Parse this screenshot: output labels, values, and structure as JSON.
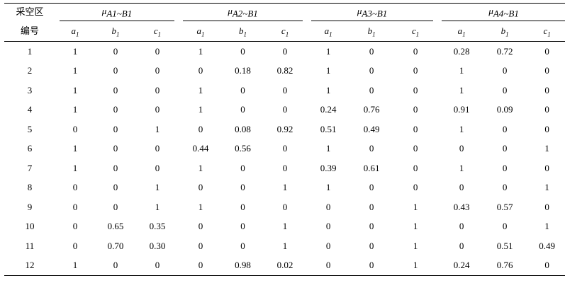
{
  "header": {
    "first_col_line1": "采空区",
    "first_col_line2": "编号",
    "groups": [
      {
        "mu": "μ",
        "sub": "A1~B1"
      },
      {
        "mu": "μ",
        "sub": "A2~B1"
      },
      {
        "mu": "μ",
        "sub": "A3~B1"
      },
      {
        "mu": "μ",
        "sub": "A4~B1"
      }
    ],
    "subcols": [
      {
        "base": "a",
        "sub": "1"
      },
      {
        "base": "b",
        "sub": "1"
      },
      {
        "base": "c",
        "sub": "1"
      }
    ]
  },
  "rows": [
    {
      "id": "1",
      "vals": [
        "1",
        "0",
        "0",
        "1",
        "0",
        "0",
        "1",
        "0",
        "0",
        "0.28",
        "0.72",
        "0"
      ]
    },
    {
      "id": "2",
      "vals": [
        "1",
        "0",
        "0",
        "0",
        "0.18",
        "0.82",
        "1",
        "0",
        "0",
        "1",
        "0",
        "0"
      ]
    },
    {
      "id": "3",
      "vals": [
        "1",
        "0",
        "0",
        "1",
        "0",
        "0",
        "1",
        "0",
        "0",
        "1",
        "0",
        "0"
      ]
    },
    {
      "id": "4",
      "vals": [
        "1",
        "0",
        "0",
        "1",
        "0",
        "0",
        "0.24",
        "0.76",
        "0",
        "0.91",
        "0.09",
        "0"
      ]
    },
    {
      "id": "5",
      "vals": [
        "0",
        "0",
        "1",
        "0",
        "0.08",
        "0.92",
        "0.51",
        "0.49",
        "0",
        "1",
        "0",
        "0"
      ]
    },
    {
      "id": "6",
      "vals": [
        "1",
        "0",
        "0",
        "0.44",
        "0.56",
        "0",
        "1",
        "0",
        "0",
        "0",
        "0",
        "1"
      ]
    },
    {
      "id": "7",
      "vals": [
        "1",
        "0",
        "0",
        "1",
        "0",
        "0",
        "0.39",
        "0.61",
        "0",
        "1",
        "0",
        "0"
      ]
    },
    {
      "id": "8",
      "vals": [
        "0",
        "0",
        "1",
        "0",
        "0",
        "1",
        "1",
        "0",
        "0",
        "0",
        "0",
        "1"
      ]
    },
    {
      "id": "9",
      "vals": [
        "0",
        "0",
        "1",
        "1",
        "0",
        "0",
        "0",
        "0",
        "1",
        "0.43",
        "0.57",
        "0"
      ]
    },
    {
      "id": "10",
      "vals": [
        "0",
        "0.65",
        "0.35",
        "0",
        "0",
        "1",
        "0",
        "0",
        "1",
        "0",
        "0",
        "1"
      ]
    },
    {
      "id": "11",
      "vals": [
        "0",
        "0.70",
        "0.30",
        "0",
        "0",
        "1",
        "0",
        "0",
        "1",
        "0",
        "0.51",
        "0.49"
      ]
    },
    {
      "id": "12",
      "vals": [
        "1",
        "0",
        "0",
        "0",
        "0.98",
        "0.02",
        "0",
        "0",
        "1",
        "0.24",
        "0.76",
        "0"
      ]
    }
  ]
}
